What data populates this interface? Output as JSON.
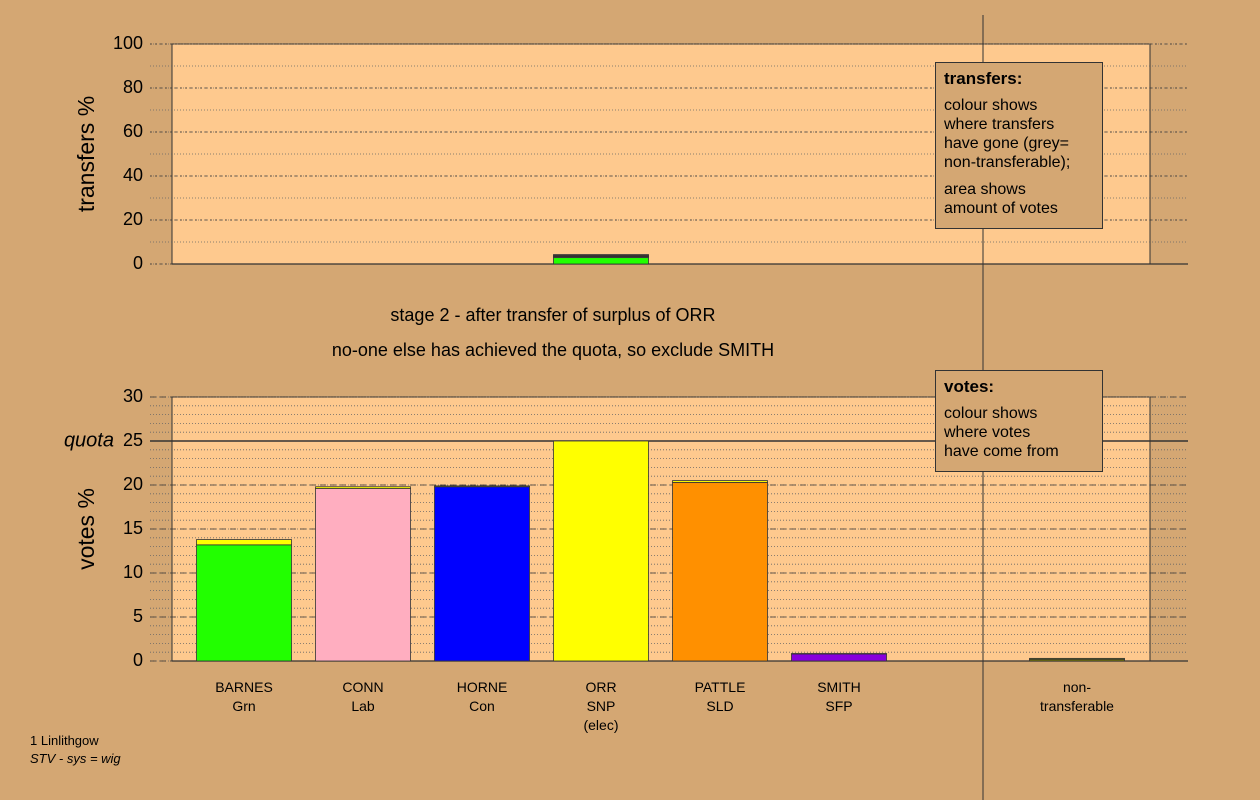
{
  "chart_data": [
    {
      "type": "bar",
      "stacked": true,
      "ylabel": "transfers %",
      "ylim": [
        0,
        100
      ],
      "yticks": [
        0,
        20,
        40,
        60,
        80,
        100
      ],
      "grid": true,
      "series": [
        {
          "color": "#22ff00",
          "values": [
            null,
            null,
            null,
            2.9,
            null,
            null,
            null,
            null
          ]
        },
        {
          "color": "#ffaec0",
          "values": [
            null,
            null,
            null,
            0.4,
            null,
            null,
            null,
            null
          ]
        },
        {
          "color": "#0000ff",
          "values": [
            null,
            null,
            null,
            0.2,
            null,
            null,
            null,
            null
          ]
        },
        {
          "color": "#ff9000",
          "values": [
            null,
            null,
            null,
            0.4,
            null,
            null,
            null,
            null
          ]
        },
        {
          "color": "#9a9a9a",
          "values": [
            null,
            null,
            null,
            0.4,
            null,
            null,
            null,
            null
          ]
        }
      ],
      "annotation": {
        "title": "transfers:",
        "lines": [
          "colour shows\nwhere transfers\nhave gone (grey=\nnon-transferable);",
          "area shows\namount of votes"
        ]
      }
    },
    {
      "type": "bar",
      "stacked": true,
      "ylabel": "votes %",
      "ylim": [
        0,
        30
      ],
      "yticks": [
        0,
        5,
        10,
        15,
        20,
        25,
        30
      ],
      "grid": true,
      "quota": {
        "label": "quota",
        "value": 25
      },
      "categories": [
        "BARNES\nGrn",
        "CONN\nLab",
        "HORNE\nCon",
        "ORR\nSNP\n(elec)",
        "PATTLE\nSLD",
        "SMITH\nSFP",
        null,
        "non-\ntransferable"
      ],
      "series": [
        {
          "colors": [
            "#22ff00",
            "#ffaec0",
            "#0000ff",
            "#ffff00",
            "#ff9000",
            "#8800dd",
            null,
            "#808000"
          ],
          "values": [
            13.2,
            19.6,
            19.8,
            25,
            20.3,
            0.8,
            null,
            0.2
          ]
        },
        {
          "color": "#ffff00",
          "values": [
            0.6,
            0.2,
            0.1,
            null,
            0.2,
            0.05,
            null,
            0.1
          ]
        }
      ],
      "annotation": {
        "title": "votes:",
        "lines": [
          "colour shows\nwhere votes\nhave come from"
        ]
      }
    }
  ],
  "stage_text": [
    "stage 2 - after transfer of surplus of ORR",
    "no-one else has achieved the quota, so exclude SMITH"
  ],
  "footer": [
    "1 Linlithgow",
    "STV - sys = wig"
  ]
}
